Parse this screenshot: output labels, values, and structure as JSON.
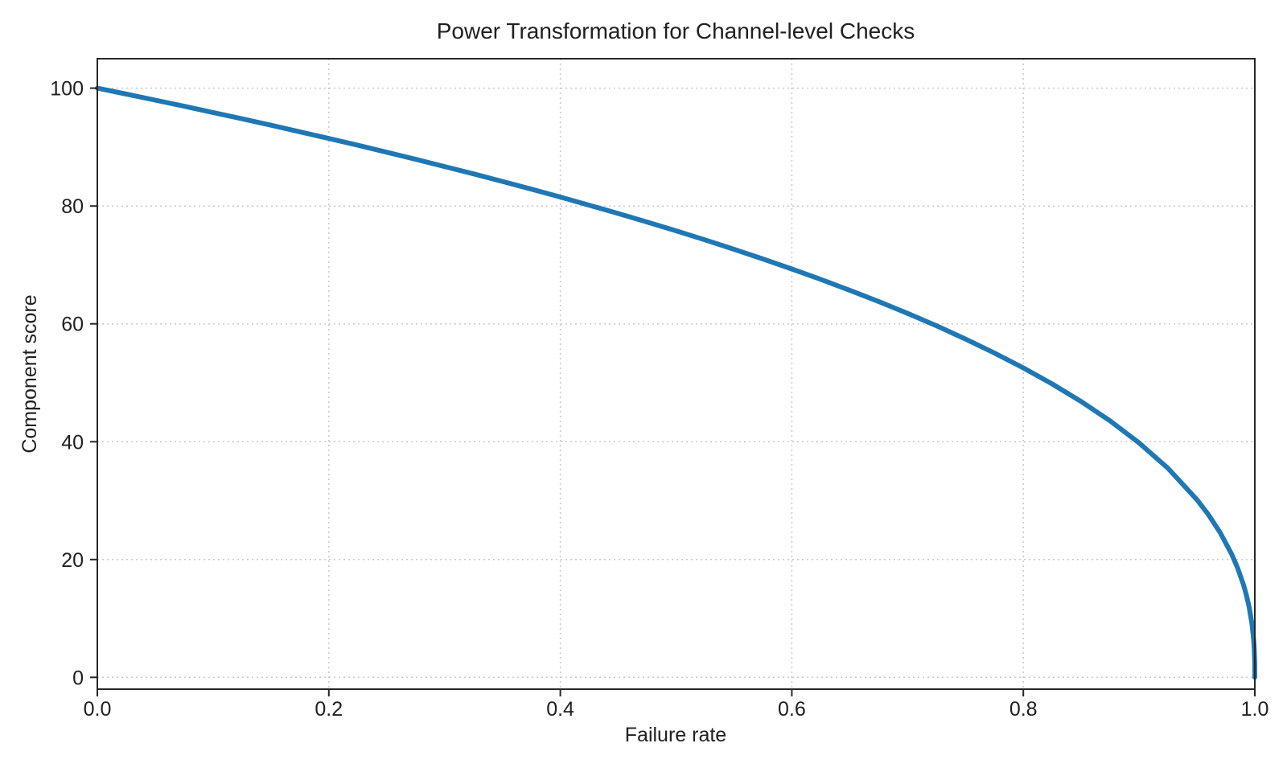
{
  "chart_data": {
    "type": "line",
    "title": "Power Transformation for Channel-level Checks",
    "xlabel": "Failure rate",
    "ylabel": "Component score",
    "xlim": [
      0,
      1
    ],
    "ylim": [
      -2,
      105
    ],
    "xticks": [
      0.0,
      0.2,
      0.4,
      0.6,
      0.8,
      1.0
    ],
    "xticklabels": [
      "0.0",
      "0.2",
      "0.4",
      "0.6",
      "0.8",
      "1.0"
    ],
    "yticks": [
      0,
      20,
      40,
      60,
      80,
      100
    ],
    "yticklabels": [
      "0",
      "20",
      "40",
      "60",
      "80",
      "100"
    ],
    "grid": true,
    "grid_style": "dotted",
    "legend": "none",
    "line_color": "#1f77b4",
    "line_width": 6,
    "derived_function": "score = 100 * (1 - failure_rate)^0.4",
    "series": [
      {
        "name": "component-score-vs-failure-rate",
        "x": [
          0,
          0.025,
          0.05,
          0.075,
          0.1,
          0.125,
          0.15,
          0.175,
          0.2,
          0.225,
          0.25,
          0.275,
          0.3,
          0.325,
          0.35,
          0.375,
          0.4,
          0.425,
          0.45,
          0.475,
          0.5,
          0.525,
          0.55,
          0.575,
          0.6,
          0.625,
          0.65,
          0.675,
          0.7,
          0.725,
          0.75,
          0.775,
          0.8,
          0.825,
          0.85,
          0.875,
          0.9,
          0.925,
          0.95,
          0.96,
          0.97,
          0.98,
          0.985,
          0.99,
          0.9925,
          0.995,
          0.9975,
          0.999,
          0.9995,
          0.9999,
          1.0
        ],
        "y": [
          100.0,
          98.99,
          97.97,
          96.93,
          95.87,
          94.8,
          93.71,
          92.59,
          91.46,
          90.31,
          89.13,
          87.93,
          86.7,
          85.45,
          84.17,
          82.86,
          81.52,
          80.14,
          78.73,
          77.28,
          75.79,
          74.25,
          72.66,
          71.02,
          69.31,
          67.55,
          65.71,
          63.79,
          61.78,
          59.67,
          57.43,
          55.06,
          52.53,
          49.8,
          46.82,
          43.53,
          39.81,
          35.48,
          30.17,
          27.6,
          24.6,
          20.91,
          18.64,
          15.85,
          14.13,
          12.01,
          9.11,
          6.31,
          4.78,
          2.51,
          0.0
        ]
      }
    ]
  },
  "colors": {
    "background": "#ffffff",
    "line": "#1f77b4",
    "grid": "#c9c9c9",
    "spine": "#262626",
    "text": "#202020"
  }
}
